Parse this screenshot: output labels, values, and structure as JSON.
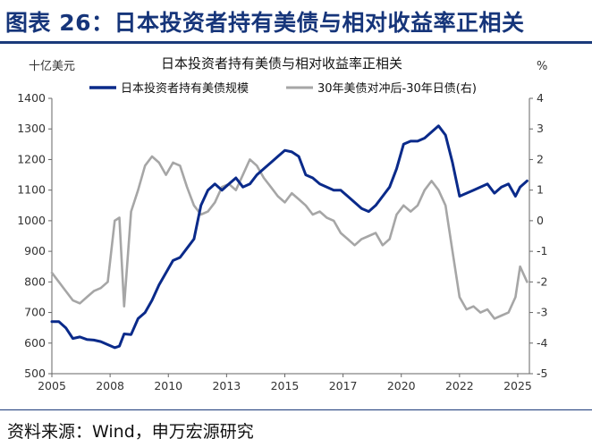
{
  "figure": {
    "header": "图表 26：日本投资者持有美债与相对收益率正相关",
    "footer": "资料来源：Wind，申万宏源研究"
  },
  "chart_data": {
    "type": "line",
    "title": "日本投资者持有美债与相对收益率正相关",
    "left_unit": "十亿美元",
    "right_unit": "%",
    "x_tick_labels": [
      "2005",
      "2008",
      "2010",
      "2013",
      "2015",
      "2017",
      "2020",
      "2022",
      "2025"
    ],
    "x_ticks": [
      2005,
      2007.5,
      2010,
      2012.5,
      2015,
      2017.5,
      2020,
      2022.5,
      2025
    ],
    "xlim": [
      2005,
      2025.5
    ],
    "ylim_left": [
      500,
      1400
    ],
    "ylim_right": [
      -5,
      4
    ],
    "y_left_ticks": [
      500,
      600,
      700,
      800,
      900,
      1000,
      1100,
      1200,
      1300,
      1400
    ],
    "y_right_ticks": [
      -5,
      -4,
      -3,
      -2,
      -1,
      0,
      1,
      2,
      3,
      4
    ],
    "legend_position": "top",
    "series": [
      {
        "name": "日本投资者持有美债规模",
        "axis": "left",
        "color": "#0a2a8a",
        "x": [
          2005.0,
          2005.3,
          2005.6,
          2005.9,
          2006.2,
          2006.5,
          2006.8,
          2007.1,
          2007.4,
          2007.7,
          2007.9,
          2008.1,
          2008.4,
          2008.7,
          2009.0,
          2009.3,
          2009.6,
          2009.9,
          2010.2,
          2010.5,
          2010.8,
          2011.1,
          2011.4,
          2011.7,
          2012.0,
          2012.3,
          2012.6,
          2012.9,
          2013.2,
          2013.5,
          2013.8,
          2014.1,
          2014.4,
          2014.7,
          2015.0,
          2015.3,
          2015.6,
          2015.9,
          2016.2,
          2016.5,
          2016.8,
          2017.1,
          2017.4,
          2017.7,
          2018.0,
          2018.3,
          2018.6,
          2018.9,
          2019.2,
          2019.5,
          2019.8,
          2020.1,
          2020.4,
          2020.7,
          2021.0,
          2021.3,
          2021.6,
          2021.9,
          2022.2,
          2022.5,
          2022.8,
          2023.1,
          2023.4,
          2023.7,
          2024.0,
          2024.3,
          2024.6,
          2024.9,
          2025.1,
          2025.4
        ],
        "y": [
          670,
          670,
          650,
          615,
          620,
          612,
          610,
          605,
          595,
          585,
          590,
          630,
          628,
          680,
          700,
          740,
          790,
          830,
          870,
          880,
          910,
          940,
          1050,
          1100,
          1120,
          1100,
          1120,
          1140,
          1110,
          1120,
          1150,
          1170,
          1190,
          1210,
          1230,
          1225,
          1210,
          1150,
          1140,
          1120,
          1110,
          1100,
          1100,
          1080,
          1060,
          1040,
          1030,
          1050,
          1080,
          1110,
          1170,
          1250,
          1260,
          1260,
          1270,
          1290,
          1310,
          1280,
          1190,
          1080,
          1090,
          1100,
          1110,
          1120,
          1090,
          1110,
          1120,
          1080,
          1110,
          1130
        ]
      },
      {
        "name": "30年美债对冲后-30年日债(右)",
        "axis": "right",
        "color": "#a6a6a6",
        "x": [
          2005.0,
          2005.3,
          2005.6,
          2005.9,
          2006.2,
          2006.5,
          2006.8,
          2007.1,
          2007.4,
          2007.7,
          2007.9,
          2008.1,
          2008.4,
          2008.7,
          2009.0,
          2009.3,
          2009.6,
          2009.9,
          2010.2,
          2010.5,
          2010.8,
          2011.1,
          2011.4,
          2011.7,
          2012.0,
          2012.3,
          2012.6,
          2012.9,
          2013.2,
          2013.5,
          2013.8,
          2014.1,
          2014.4,
          2014.7,
          2015.0,
          2015.3,
          2015.6,
          2015.9,
          2016.2,
          2016.5,
          2016.8,
          2017.1,
          2017.4,
          2017.7,
          2018.0,
          2018.3,
          2018.6,
          2018.9,
          2019.2,
          2019.5,
          2019.8,
          2020.1,
          2020.4,
          2020.7,
          2021.0,
          2021.3,
          2021.6,
          2021.9,
          2022.2,
          2022.5,
          2022.8,
          2023.1,
          2023.4,
          2023.7,
          2024.0,
          2024.3,
          2024.6,
          2024.9,
          2025.1,
          2025.4
        ],
        "y": [
          -1.7,
          -2.0,
          -2.3,
          -2.6,
          -2.7,
          -2.5,
          -2.3,
          -2.2,
          -2.0,
          0.0,
          0.1,
          -2.8,
          0.3,
          1.0,
          1.8,
          2.1,
          1.9,
          1.5,
          1.9,
          1.8,
          1.1,
          0.5,
          0.2,
          0.3,
          0.6,
          1.1,
          1.2,
          1.0,
          1.5,
          2.0,
          1.8,
          1.4,
          1.1,
          0.8,
          0.6,
          0.9,
          0.7,
          0.5,
          0.2,
          0.3,
          0.1,
          0.0,
          -0.4,
          -0.6,
          -0.8,
          -0.6,
          -0.5,
          -0.4,
          -0.8,
          -0.6,
          0.2,
          0.5,
          0.3,
          0.5,
          1.0,
          1.3,
          1.0,
          0.5,
          -1.0,
          -2.5,
          -2.9,
          -2.8,
          -3.0,
          -2.9,
          -3.2,
          -3.1,
          -3.0,
          -2.5,
          -1.5,
          -2.0
        ]
      }
    ]
  }
}
